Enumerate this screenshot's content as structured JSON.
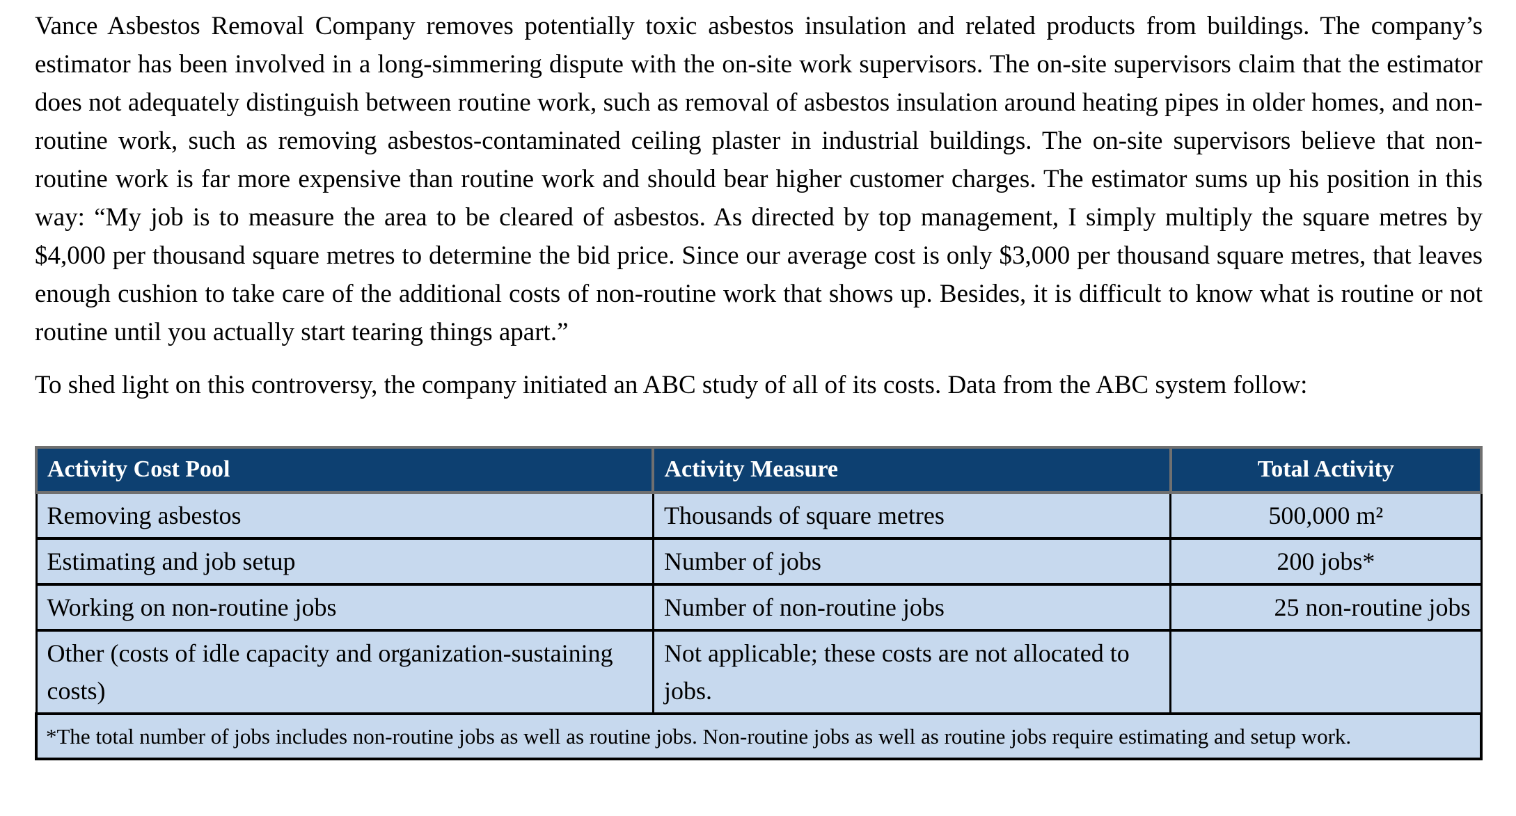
{
  "document": {
    "paragraphs": [
      "Vance Asbestos Removal Company removes potentially toxic asbestos insulation and related products from buildings. The company’s estimator has been involved in a long-simmering dispute with the on-site work supervisors. The on-site supervisors claim that the estimator does not adequately distinguish between routine work, such as removal of asbestos insulation around heating pipes in older homes, and non-routine work, such as removing asbestos-contaminated ceiling plaster in industrial buildings. The on-site supervisors believe that non-routine work is far more expensive than routine work and should bear higher customer charges. The estimator sums up his position in this way: “My job is to measure the area to be cleared of asbestos. As directed by top management, I simply multiply the square metres by $4,000 per thousand square metres to determine the bid price. Since our average cost is only $3,000 per thousand square metres, that leaves enough cushion to take care of the additional costs of non-routine work that shows up. Besides, it is difficult to know what is routine or not routine until you actually start tearing things apart.”",
      "To shed light on this controversy, the company initiated an ABC study of all of its costs. Data from the ABC system follow:"
    ]
  },
  "table": {
    "headers": [
      "Activity Cost Pool",
      "Activity Measure",
      "Total Activity"
    ],
    "rows": [
      [
        "Removing asbestos",
        "Thousands of square metres",
        "500,000 m²"
      ],
      [
        "Estimating and job setup",
        "Number of jobs",
        "200 jobs*"
      ],
      [
        "Working on non-routine jobs",
        "Number of non-routine jobs",
        "25 non-routine jobs"
      ],
      [
        "Other (costs of idle capacity and organization-sustaining costs)",
        "Not applicable; these costs are not allocated to jobs.",
        ""
      ]
    ],
    "footnote": "*The total number of jobs includes non-routine jobs as well as routine jobs. Non-routine jobs as well as routine jobs require estimating and setup work.",
    "colors": {
      "header_background": "#0D4071",
      "header_text": "#FFFFFF",
      "row_background": "#C7D9EE",
      "body_border": "#000000",
      "header_border": "#707070"
    }
  }
}
